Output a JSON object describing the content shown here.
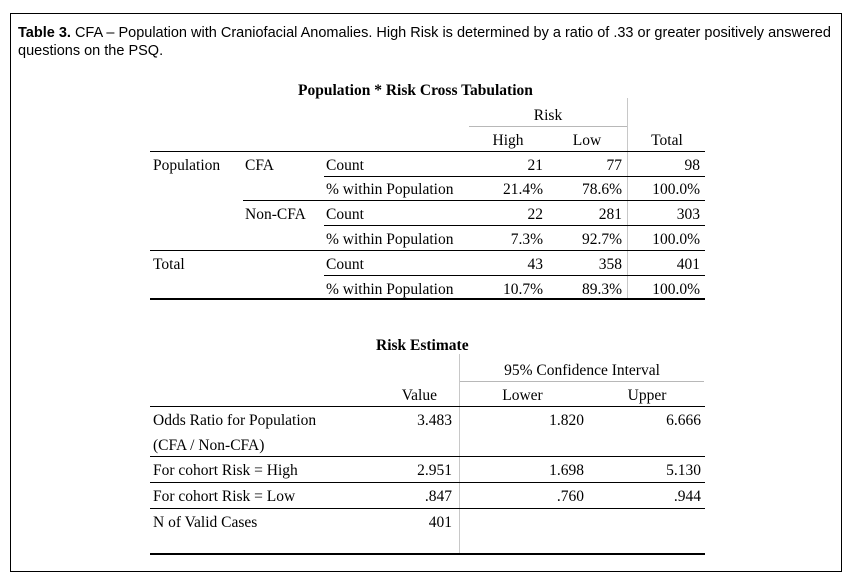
{
  "caption": {
    "label": "Table 3.",
    "text": " CFA – Population with Craniofacial Anomalies. High Risk is determined by a ratio of .33 or greater positively answered questions on the PSQ."
  },
  "crosstab": {
    "title": "Population * Risk Cross Tabulation",
    "risk_header": "Risk",
    "col_headers": [
      "High",
      "Low",
      "Total"
    ],
    "row_group_label": "Population",
    "rows": [
      {
        "group": "CFA",
        "stat": "Count",
        "high": "21",
        "low": "77",
        "total": "98"
      },
      {
        "group": "",
        "stat": "% within Population",
        "high": "21.4%",
        "low": "78.6%",
        "total": "100.0%"
      },
      {
        "group": "Non-CFA",
        "stat": "Count",
        "high": "22",
        "low": "281",
        "total": "303"
      },
      {
        "group": "",
        "stat": "% within Population",
        "high": "7.3%",
        "low": "92.7%",
        "total": "100.0%"
      }
    ],
    "total_label": "Total",
    "total_rows": [
      {
        "stat": "Count",
        "high": "43",
        "low": "358",
        "total": "401"
      },
      {
        "stat": "% within Population",
        "high": "10.7%",
        "low": "89.3%",
        "total": "100.0%"
      }
    ]
  },
  "risk_estimate": {
    "title": "Risk Estimate",
    "ci_header": "95% Confidence Interval",
    "col_value": "Value",
    "col_lower": "Lower",
    "col_upper": "Upper",
    "rows": [
      {
        "label": "Odds Ratio for Population",
        "label2": "(CFA / Non-CFA)",
        "value": "3.483",
        "lower": "1.820",
        "upper": "6.666"
      },
      {
        "label": "For cohort Risk = High",
        "value": "2.951",
        "lower": "1.698",
        "upper": "5.130"
      },
      {
        "label": "For cohort Risk = Low",
        "value": ".847",
        "lower": ".760",
        "upper": ".944"
      },
      {
        "label": "N of Valid Cases",
        "value": "401",
        "lower": "",
        "upper": ""
      }
    ]
  }
}
